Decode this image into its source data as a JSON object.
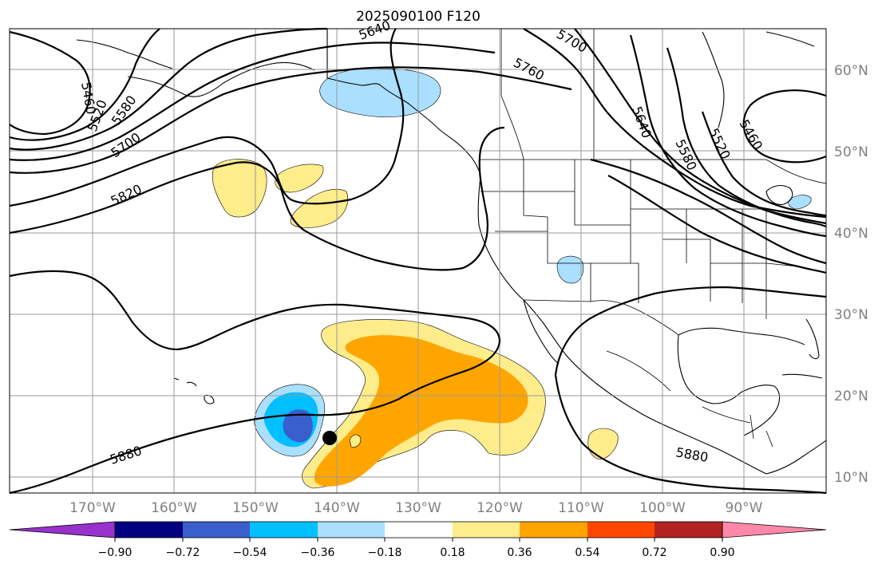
{
  "title": "2025090100 F120",
  "map": {
    "lat_labels": [
      {
        "text": "60°N",
        "lat": 60
      },
      {
        "text": "50°N",
        "lat": 50
      },
      {
        "text": "40°N",
        "lat": 40
      },
      {
        "text": "30°N",
        "lat": 30
      },
      {
        "text": "20°N",
        "lat": 20
      },
      {
        "text": "10°N",
        "lat": 10
      }
    ],
    "lon_labels": [
      {
        "text": "170°W",
        "lon": -170
      },
      {
        "text": "160°W",
        "lon": -160
      },
      {
        "text": "150°W",
        "lon": -150
      },
      {
        "text": "140°W",
        "lon": -140
      },
      {
        "text": "130°W",
        "lon": -130
      },
      {
        "text": "120°W",
        "lon": -120
      },
      {
        "text": "110°W",
        "lon": -110
      },
      {
        "text": "100°W",
        "lon": -100
      },
      {
        "text": "90°W",
        "lon": -90
      }
    ],
    "contour_labels": [
      "5460",
      "5520",
      "5580",
      "5640",
      "5700",
      "5760",
      "5820",
      "5880"
    ],
    "storm_marker": {
      "lat": 14.8,
      "lon": -140.5
    }
  },
  "colorbar": {
    "ticks": [
      "−0.90",
      "−0.72",
      "−0.54",
      "−0.36",
      "−0.18",
      "0.18",
      "0.36",
      "0.54",
      "0.72",
      "0.90"
    ],
    "colors": [
      "#9932cc",
      "#000080",
      "#3a5fcd",
      "#00bfff",
      "#aadfff",
      "#ffffff",
      "#ffec8b",
      "#ffa500",
      "#ff4500",
      "#b22222",
      "#ff88aa"
    ]
  }
}
